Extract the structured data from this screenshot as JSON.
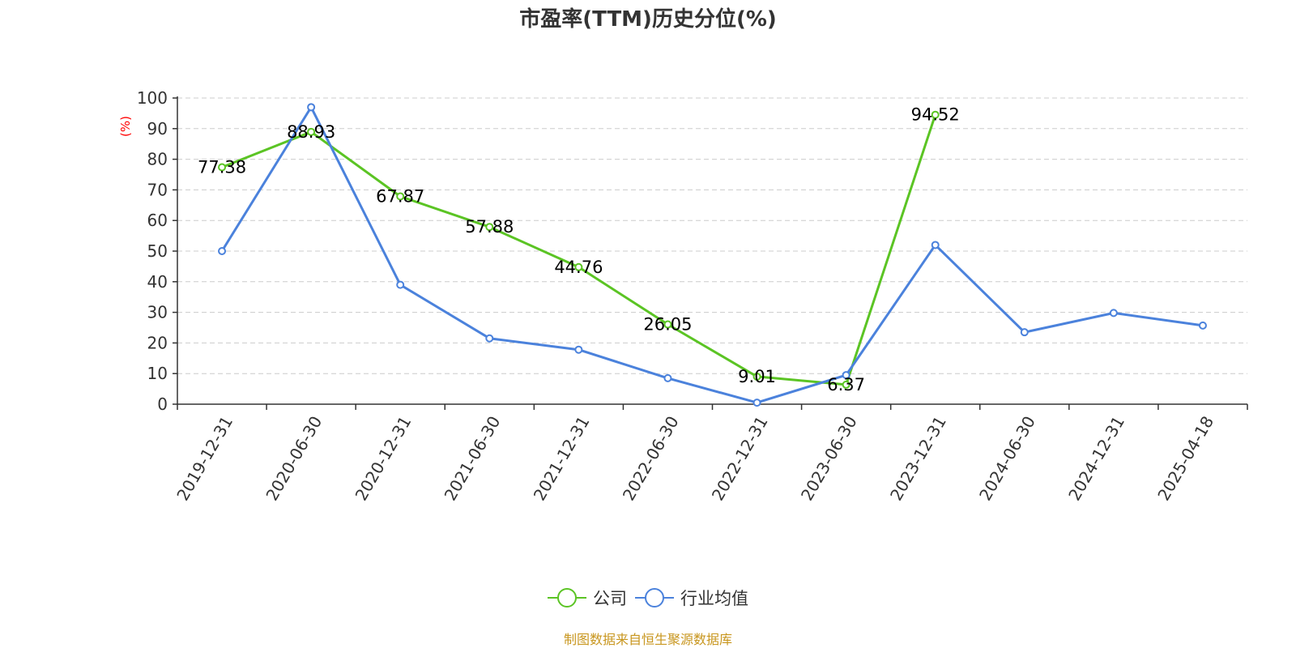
{
  "chart_data": {
    "type": "line",
    "title": "市盈率(TTM)历史分位(%)",
    "ylabel": "(%)",
    "xlabel": "",
    "ylim": [
      0,
      100
    ],
    "yticks": [
      0,
      10,
      20,
      30,
      40,
      50,
      60,
      70,
      80,
      90,
      100
    ],
    "grid": true,
    "legend_position": "bottom",
    "categories": [
      "2019-12-31",
      "2020-06-30",
      "2020-12-31",
      "2021-06-30",
      "2021-12-31",
      "2022-06-30",
      "2022-12-31",
      "2023-06-30",
      "2023-12-31",
      "2024-06-30",
      "2024-12-31",
      "2025-04-18"
    ],
    "series": [
      {
        "name": "公司",
        "color": "#5bc424",
        "values": [
          77.38,
          88.93,
          67.87,
          57.88,
          44.76,
          26.05,
          9.01,
          6.37,
          94.52,
          null,
          null,
          null
        ],
        "labels": [
          "77.38",
          "88.93",
          "67.87",
          "57.88",
          "44.76",
          "26.05",
          "9.01",
          "6.37",
          "94.52",
          null,
          null,
          null
        ]
      },
      {
        "name": "行业均值",
        "color": "#4b82dc",
        "values": [
          50,
          97,
          39,
          21.5,
          17.8,
          8.5,
          0.5,
          9.5,
          52,
          23.5,
          29.8,
          25.7
        ]
      }
    ],
    "source": "制图数据来自恒生聚源数据库"
  }
}
